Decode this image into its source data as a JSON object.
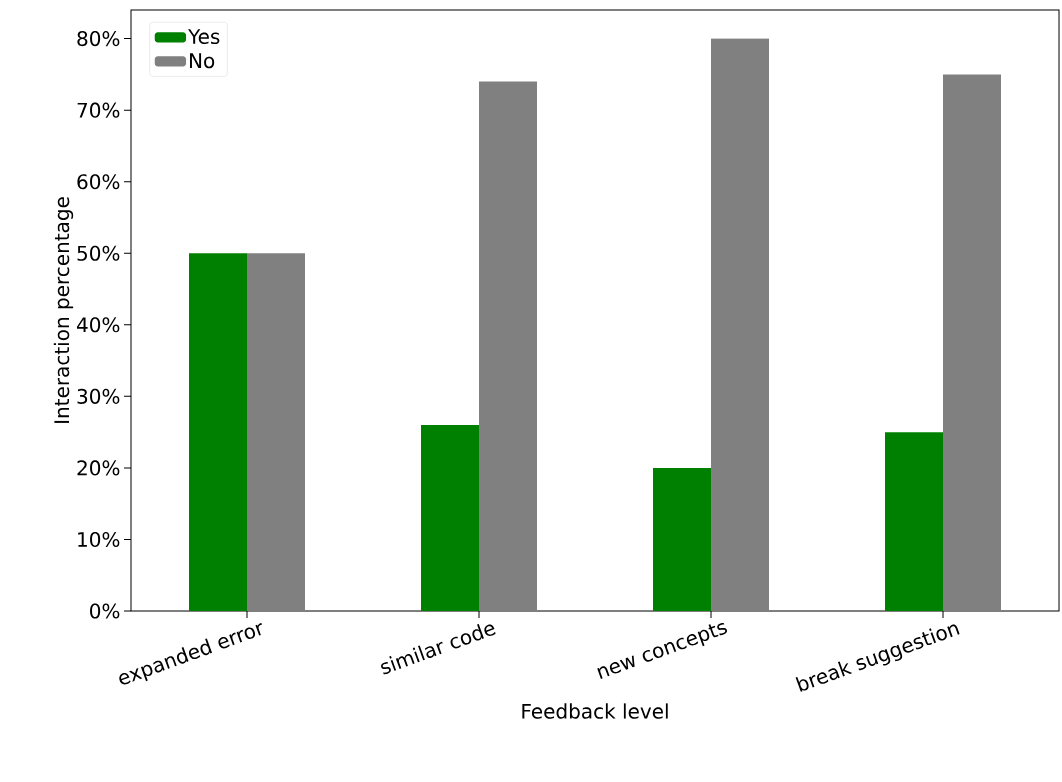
{
  "chart_data": {
    "type": "bar",
    "xlabel": "Feedback level",
    "ylabel": "Interaction percentage",
    "categories": [
      "expanded error",
      "similar code",
      "new concepts",
      "break suggestion"
    ],
    "series": [
      {
        "name": "Yes",
        "color": "#008000",
        "values": [
          50,
          26,
          20,
          25
        ]
      },
      {
        "name": "No",
        "color": "#808080",
        "values": [
          50,
          74,
          80,
          75
        ]
      }
    ],
    "ylim": [
      0,
      84
    ],
    "yticks": [
      {
        "value": 0,
        "label": "0%"
      },
      {
        "value": 10,
        "label": "10%"
      },
      {
        "value": 20,
        "label": "20%"
      },
      {
        "value": 30,
        "label": "30%"
      },
      {
        "value": 40,
        "label": "40%"
      },
      {
        "value": 50,
        "label": "50%"
      },
      {
        "value": 60,
        "label": "60%"
      },
      {
        "value": 70,
        "label": "70%"
      },
      {
        "value": 80,
        "label": "80%"
      }
    ],
    "legend": "top left",
    "grid": false
  }
}
